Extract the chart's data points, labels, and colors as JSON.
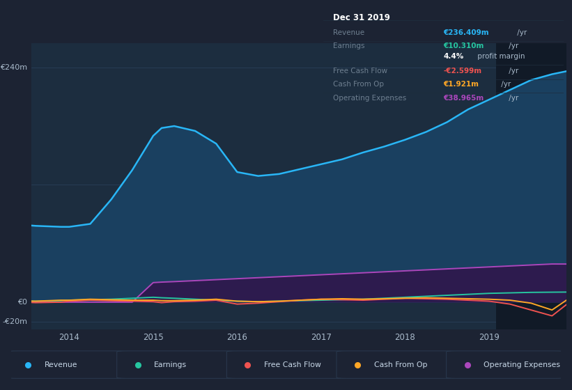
{
  "background_color": "#1c2333",
  "plot_bg_color": "#1c2d3f",
  "grid_color": "#2a3f58",
  "text_color": "#8899aa",
  "axis_label_color": "#aabbcc",
  "years": [
    2013.0,
    2013.3,
    2013.6,
    2013.9,
    2014.0,
    2014.25,
    2014.5,
    2014.75,
    2015.0,
    2015.1,
    2015.25,
    2015.5,
    2015.75,
    2016.0,
    2016.25,
    2016.5,
    2016.75,
    2017.0,
    2017.25,
    2017.5,
    2017.75,
    2018.0,
    2018.25,
    2018.5,
    2018.75,
    2019.0,
    2019.25,
    2019.5,
    2019.75,
    2019.92
  ],
  "revenue": [
    82,
    80,
    78,
    77,
    77,
    80,
    105,
    135,
    170,
    178,
    180,
    175,
    162,
    133,
    129,
    131,
    136,
    141,
    146,
    153,
    159,
    166,
    174,
    184,
    197,
    207,
    217,
    227,
    233,
    236
  ],
  "earnings": [
    2,
    1.5,
    1,
    1.5,
    2,
    2.5,
    3,
    4,
    5,
    4.5,
    4,
    3,
    2,
    1,
    0.5,
    1,
    1.5,
    2,
    2.5,
    3,
    4,
    5,
    6,
    7,
    8,
    9,
    9.5,
    10,
    10.2,
    10.31
  ],
  "free_cash_flow": [
    1,
    0.5,
    -0.5,
    0,
    1,
    2,
    1.5,
    1,
    0.5,
    -0.5,
    0.5,
    1,
    2,
    -2,
    -1,
    0.5,
    2,
    3,
    2.5,
    2,
    3,
    4,
    3.5,
    3,
    2,
    1,
    -2,
    -8,
    -14,
    -2.599
  ],
  "cash_from_op": [
    2,
    1.5,
    1,
    2,
    2,
    3,
    2.5,
    2,
    2,
    1.5,
    1.5,
    2,
    3,
    1,
    0.5,
    1,
    2,
    3,
    3.5,
    3,
    3.5,
    4,
    4.5,
    4,
    3.5,
    3,
    2,
    -1,
    -8,
    1.921
  ],
  "operating_expenses": [
    0,
    0,
    0,
    0,
    0,
    0,
    0,
    0,
    20,
    20.5,
    21,
    22,
    23,
    24,
    25,
    26,
    27,
    28,
    29,
    30,
    31,
    32,
    33,
    34,
    35,
    36,
    37,
    38,
    39,
    38.965
  ],
  "revenue_color": "#29b6f6",
  "revenue_fill": "#1a4060",
  "earnings_color": "#26c6a0",
  "fcf_color": "#ef5350",
  "cashop_color": "#ffa726",
  "opex_color": "#ab47bc",
  "opex_fill": "#2d1b4e",
  "highlight_x_start": 2019.08,
  "highlight_x_end": 2019.92,
  "highlight_color": "#111a27",
  "ylim": [
    -28,
    265
  ],
  "yticks_labeled": [
    240,
    0,
    -20
  ],
  "ytick_label_texts": [
    "€240m",
    "€0",
    "-€20m"
  ],
  "yticks_grid": [
    240,
    120,
    0,
    -20
  ],
  "xticks": [
    2014,
    2015,
    2016,
    2017,
    2018,
    2019
  ],
  "xtick_labels": [
    "2014",
    "2015",
    "2016",
    "2017",
    "2018",
    "2019"
  ],
  "xmin": 2013.55,
  "xmax": 2019.92,
  "legend_items": [
    "Revenue",
    "Earnings",
    "Free Cash Flow",
    "Cash From Op",
    "Operating Expenses"
  ],
  "legend_colors": [
    "#29b6f6",
    "#26c6a0",
    "#ef5350",
    "#ffa726",
    "#ab47bc"
  ],
  "info_box": {
    "title": "Dec 31 2019",
    "rows": [
      {
        "label": "Revenue",
        "value": "€236.409m",
        "suffix": " /yr",
        "value_color": "#29b6f6"
      },
      {
        "label": "Earnings",
        "value": "€10.310m",
        "suffix": " /yr",
        "value_color": "#26c6a0"
      },
      {
        "label": "",
        "value": "4.4%",
        "suffix": " profit margin",
        "value_color": "#ffffff"
      },
      {
        "label": "Free Cash Flow",
        "value": "-€2.599m",
        "suffix": " /yr",
        "value_color": "#ef5350"
      },
      {
        "label": "Cash From Op",
        "value": "€1.921m",
        "suffix": " /yr",
        "value_color": "#ffa726"
      },
      {
        "label": "Operating Expenses",
        "value": "€38.965m",
        "suffix": " /yr",
        "value_color": "#ab47bc"
      }
    ],
    "bg_color": "#0a0e17",
    "sep_color": "#1e2d3d",
    "title_color": "#ffffff",
    "label_color": "#6e7f90",
    "suffix_color": "#aabbcc"
  }
}
